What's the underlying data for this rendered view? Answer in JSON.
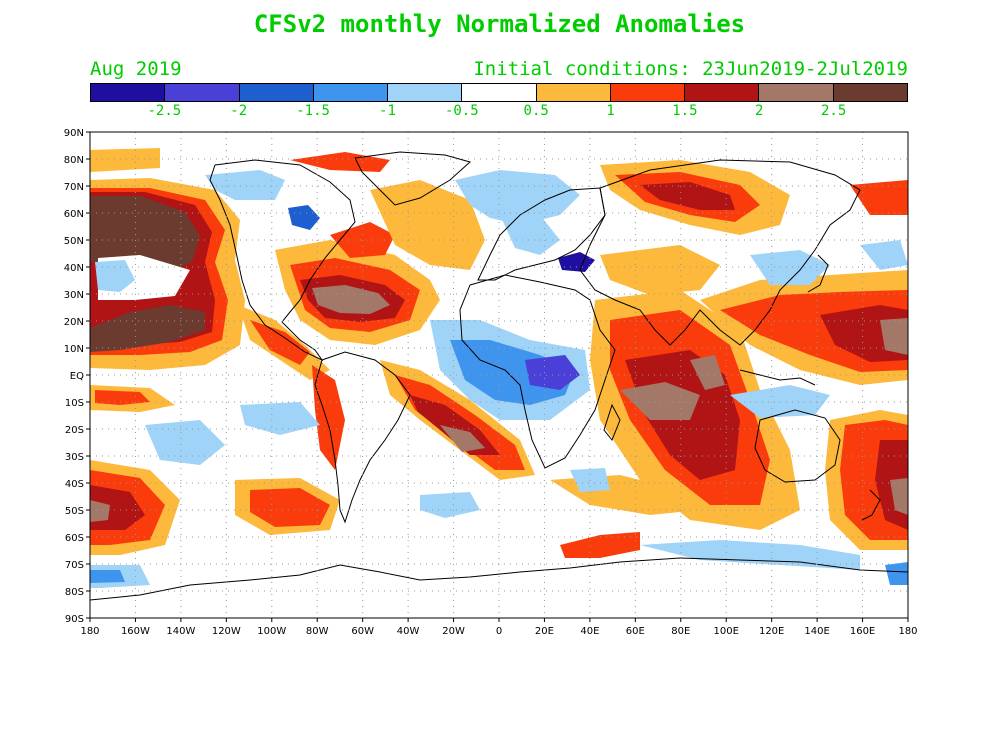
{
  "header": {
    "title": "CFSv2 monthly Normalized Anomalies",
    "month": "Aug 2019",
    "initial_conditions": "Initial conditions: 23Jun2019-2Jul2019"
  },
  "colorbar": {
    "colors": [
      "#1f0fa0",
      "#4a3fd6",
      "#1e5fcf",
      "#3f94ee",
      "#9fd3f8",
      "#ffffff",
      "#fcb93b",
      "#fa3c0c",
      "#b01414",
      "#a37868",
      "#6b3b30"
    ],
    "labels": [
      "-2.5",
      "-2",
      "-1.5",
      "-1",
      "-0.5",
      "0.5",
      "1",
      "1.5",
      "2",
      "2.5"
    ]
  },
  "axes": {
    "lat_labels": [
      "90N",
      "80N",
      "70N",
      "60N",
      "50N",
      "40N",
      "30N",
      "20N",
      "10N",
      "EQ",
      "10S",
      "20S",
      "30S",
      "40S",
      "50S",
      "60S",
      "70S",
      "80S",
      "90S"
    ],
    "lon_labels": [
      "180",
      "160W",
      "140W",
      "120W",
      "100W",
      "80W",
      "60W",
      "40W",
      "20W",
      "0",
      "20E",
      "40E",
      "60E",
      "80E",
      "100E",
      "120E",
      "140E",
      "160E",
      "180"
    ]
  },
  "style": {
    "text_color": "#00cc00",
    "land_outline": "#000000",
    "grid_color": "#999999"
  }
}
